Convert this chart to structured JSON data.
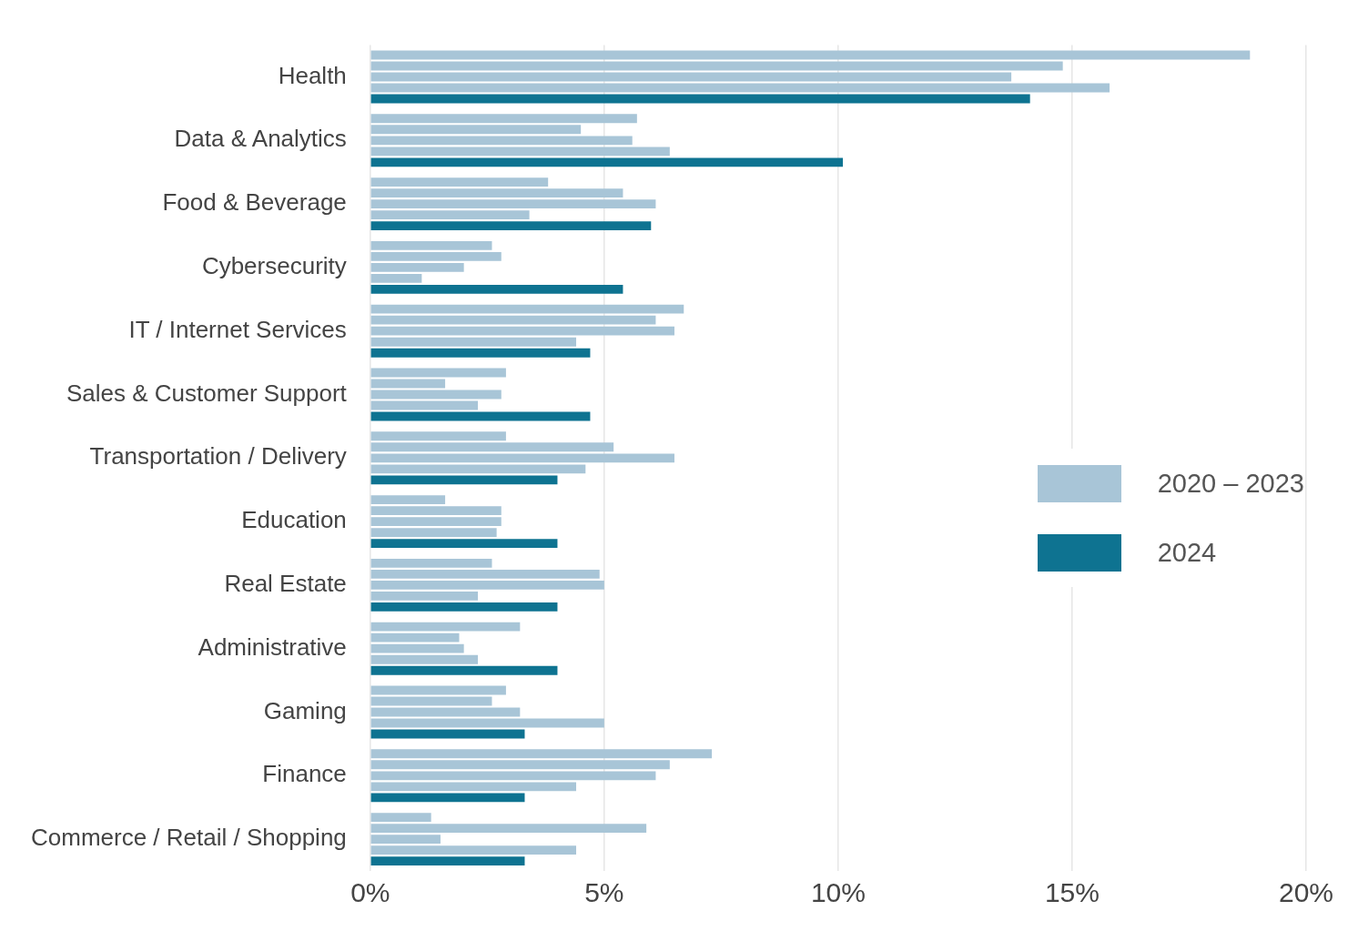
{
  "chart_data": {
    "type": "bar",
    "orientation": "horizontal",
    "categories": [
      "Health",
      "Data & Analytics",
      "Food & Beverage",
      "Cybersecurity",
      "IT / Internet Services",
      "Sales & Customer Support",
      "Transportation / Delivery",
      "Education",
      "Real Estate",
      "Administrative",
      "Gaming",
      "Finance",
      "Commerce / Retail / Shopping"
    ],
    "series": [
      {
        "name": "2020 – 2023",
        "color": "#a8c5d7",
        "values": [
          18.8,
          5.7,
          3.8,
          2.6,
          6.7,
          2.9,
          2.9,
          1.6,
          2.6,
          3.2,
          2.9,
          7.3,
          1.3
        ]
      },
      {
        "color": "#a8c5d7",
        "values": [
          14.8,
          4.5,
          5.4,
          2.8,
          6.1,
          1.6,
          5.2,
          2.8,
          4.9,
          1.9,
          2.6,
          6.4,
          5.9
        ]
      },
      {
        "color": "#a8c5d7",
        "values": [
          13.7,
          5.6,
          6.1,
          2.0,
          6.5,
          2.8,
          6.5,
          2.8,
          5.0,
          2.0,
          3.2,
          6.1,
          1.5
        ]
      },
      {
        "color": "#a8c5d7",
        "values": [
          15.8,
          6.4,
          3.4,
          1.1,
          4.4,
          2.3,
          4.6,
          2.7,
          2.3,
          2.3,
          5.0,
          4.4,
          4.4
        ]
      },
      {
        "name": "2024",
        "color": "#0e7391",
        "values": [
          14.1,
          10.1,
          6.0,
          5.4,
          4.7,
          4.7,
          4.0,
          4.0,
          4.0,
          4.0,
          3.3,
          3.3,
          3.3
        ]
      }
    ],
    "xlim": [
      0,
      20
    ],
    "xticks": [
      {
        "value": 0,
        "label": "0%"
      },
      {
        "value": 5,
        "label": "5%"
      },
      {
        "value": 10,
        "label": "10%"
      },
      {
        "value": 15,
        "label": "15%"
      },
      {
        "value": 20,
        "label": "20%"
      }
    ],
    "grid": "x",
    "legend": "right"
  }
}
